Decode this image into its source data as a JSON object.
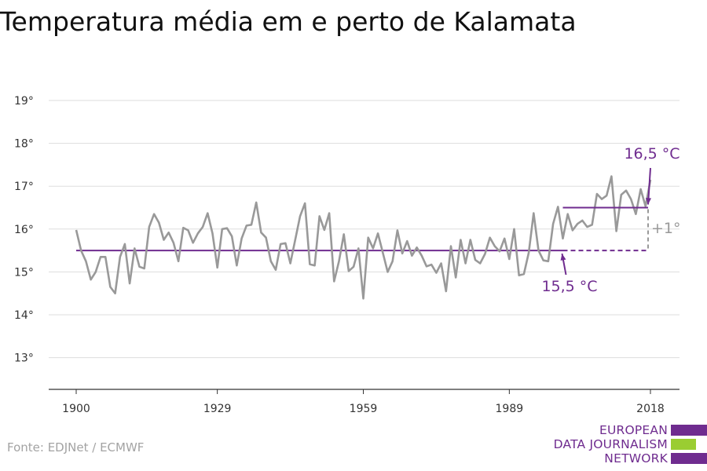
{
  "title": "Temperatura média em e perto de Kalamata",
  "source": "Fonte: EDJNet / ECMWF",
  "logo": {
    "lines": [
      "EUROPEAN",
      "DATA JOURNALISM",
      "NETWORK"
    ],
    "colors": [
      "#6f2c8f",
      "#9acd32",
      "#6f2c8f"
    ]
  },
  "colors": {
    "series": "#999999",
    "accent": "#6f2c8f",
    "grid": "#dddddd",
    "axis": "#333333",
    "diff": "#999999"
  },
  "chart_data": {
    "type": "line",
    "title": "Temperatura média em e perto de Kalamata",
    "xlabel": "",
    "ylabel": "",
    "xlim": [
      1900,
      2018
    ],
    "ylim": [
      12.5,
      19.5
    ],
    "grid": true,
    "x_ticks": [
      1900,
      1929,
      1959,
      1989,
      2018
    ],
    "y_ticks": [
      13,
      14,
      15,
      16,
      17,
      18,
      19
    ],
    "y_tick_labels": [
      "13°",
      "14°",
      "15°",
      "16°",
      "17°",
      "18°",
      "19°"
    ],
    "x_start": 1900,
    "series": [
      {
        "values": [
          15.98,
          15.5,
          15.25,
          14.82,
          15.0,
          15.35,
          15.35,
          14.65,
          14.5,
          15.35,
          15.65,
          14.73,
          15.55,
          15.12,
          15.08,
          16.05,
          16.35,
          16.15,
          15.75,
          15.92,
          15.68,
          15.25,
          16.03,
          15.97,
          15.68,
          15.9,
          16.05,
          16.37,
          15.9,
          15.1,
          16.0,
          16.02,
          15.83,
          15.15,
          15.78,
          16.08,
          16.1,
          16.62,
          15.92,
          15.8,
          15.25,
          15.05,
          15.65,
          15.67,
          15.2,
          15.75,
          16.3,
          16.6,
          15.18,
          15.15,
          16.3,
          15.98,
          16.37,
          14.78,
          15.25,
          15.88,
          15.02,
          15.12,
          15.55,
          14.38,
          15.8,
          15.55,
          15.9,
          15.45,
          15.0,
          15.25,
          15.97,
          15.43,
          15.72,
          15.38,
          15.57,
          15.38,
          15.13,
          15.17,
          14.98,
          15.2,
          14.55,
          15.6,
          14.87,
          15.75,
          15.2,
          15.75,
          15.28,
          15.2,
          15.42,
          15.8,
          15.6,
          15.48,
          15.78,
          15.3,
          16.0,
          14.92,
          14.95,
          15.45,
          16.37,
          15.5,
          15.27,
          15.25,
          16.12,
          16.52,
          15.78,
          16.35,
          15.97,
          16.12,
          16.2,
          16.05,
          16.1,
          16.82,
          16.7,
          16.78,
          17.23,
          15.95,
          16.8,
          16.9,
          16.7,
          16.35,
          16.93,
          16.53,
          17.15
        ]
      }
    ],
    "annotations": {
      "baseline": {
        "value": 15.5,
        "label": "15,5 °C",
        "x_from": 1900,
        "x_to": 2018
      },
      "recent": {
        "value": 16.5,
        "label": "16,5 °C",
        "x_from": 2000,
        "x_to": 2018
      },
      "difference": "+1°"
    }
  }
}
